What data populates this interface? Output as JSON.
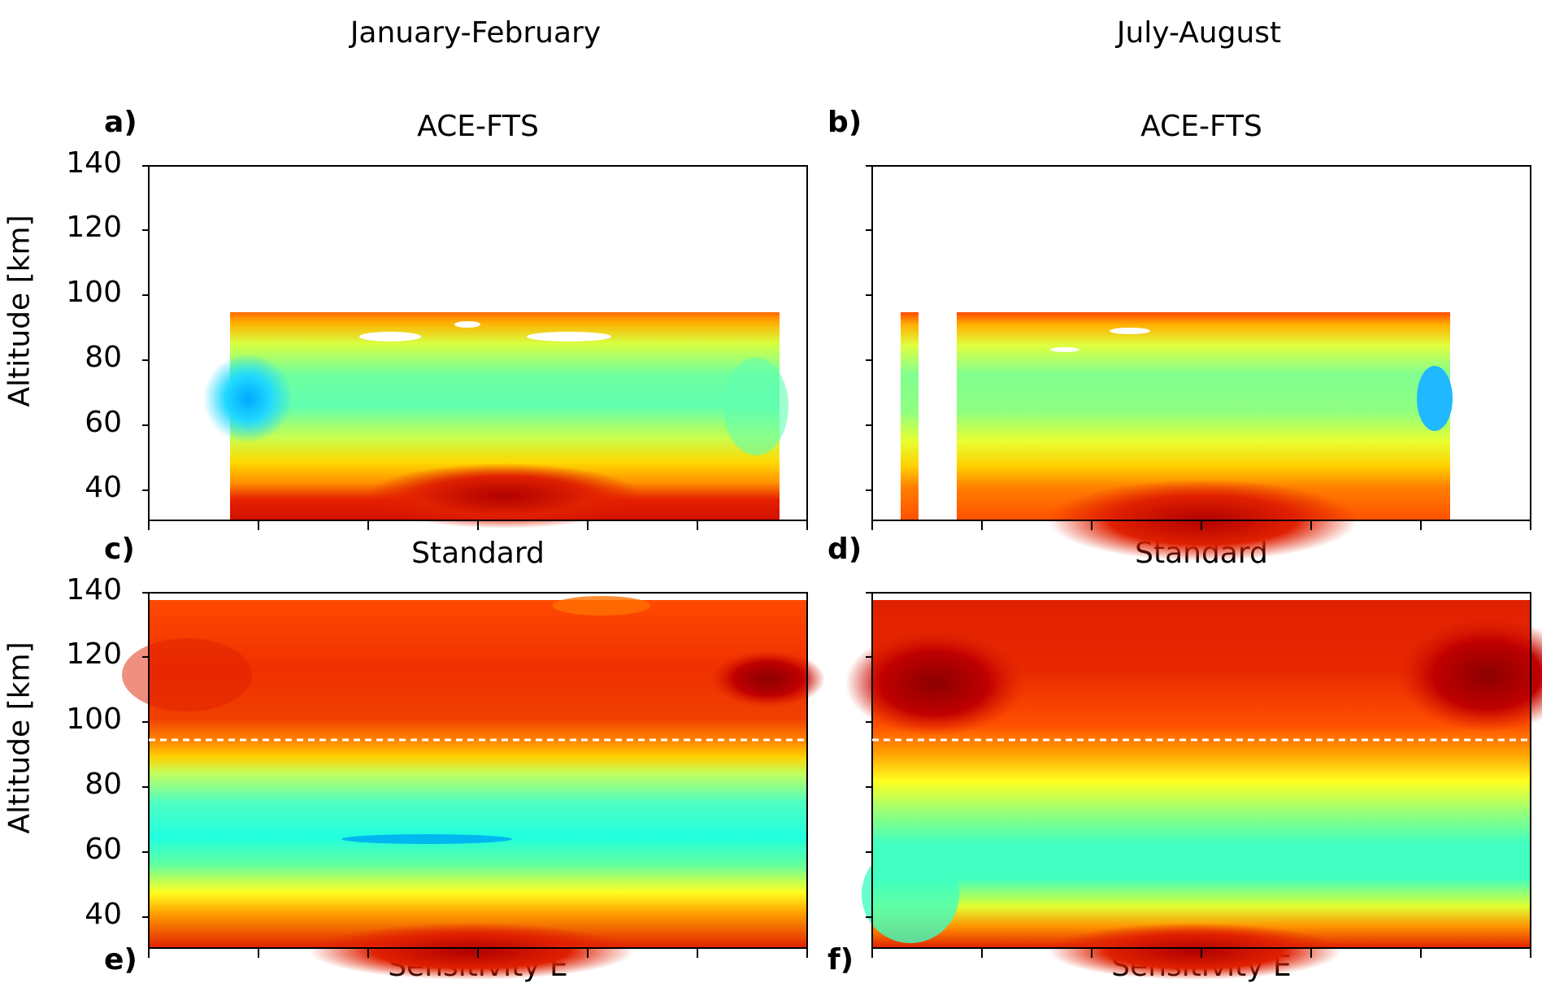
{
  "columns": [
    "January-February",
    "July-August"
  ],
  "chart_data": [
    {
      "type": "heatmap",
      "panel": "a)",
      "title": "ACE-FTS",
      "ylabel": "Altitude [km]",
      "ylim": [
        30,
        140
      ],
      "yticks": [
        40,
        60,
        80,
        100,
        120,
        140
      ],
      "data_extent_altitude": [
        30,
        95
      ],
      "grid": false
    },
    {
      "type": "heatmap",
      "panel": "b)",
      "title": "ACE-FTS",
      "ylabel": "",
      "ylim": [
        30,
        140
      ],
      "yticks": [],
      "data_extent_altitude": [
        30,
        95
      ],
      "grid": false
    },
    {
      "type": "heatmap",
      "panel": "c)",
      "title": "Standard",
      "ylabel": "Altitude [km]",
      "ylim": [
        30,
        140
      ],
      "yticks": [
        40,
        60,
        80,
        100,
        120,
        140
      ],
      "reference_line_altitude": 95,
      "grid": false
    },
    {
      "type": "heatmap",
      "panel": "d)",
      "title": "Standard",
      "ylabel": "",
      "ylim": [
        30,
        140
      ],
      "yticks": [],
      "reference_line_altitude": 95,
      "grid": false
    }
  ],
  "bottom_row_partial": {
    "panel_e": "e)",
    "panel_f": "f)",
    "title_left": "Sensitivity E",
    "title_right": "Sensitivity E"
  },
  "colormap": [
    "#8b0000",
    "#e02000",
    "#ff7000",
    "#ffd000",
    "#d8ff30",
    "#80ff80",
    "#20ffe0",
    "#00b0ff"
  ]
}
